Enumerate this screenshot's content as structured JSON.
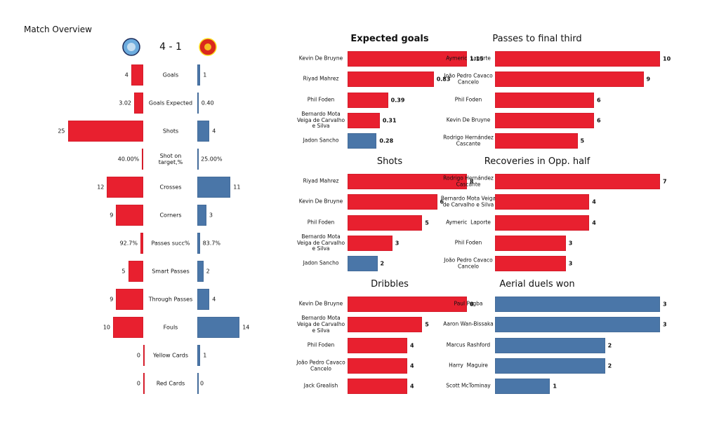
{
  "chart_data": [
    {
      "type": "butterfly",
      "title": "Match Overview",
      "score": "4 - 1",
      "categories": [
        "Goals",
        "Goals Expected",
        "Shots",
        "Shot on\ntarget,%",
        "Crosses",
        "Corners",
        "Passes succ%",
        "Smart Passes",
        "Through Passes",
        "Fouls",
        "Yellow Cards",
        "Red Cards"
      ],
      "series": [
        {
          "color": "#e8202f",
          "values": [
            4,
            3.02,
            25,
            40,
            12,
            9,
            92.7,
            5,
            9,
            10,
            0,
            0
          ],
          "value_labels": [
            "4",
            "3.02",
            "25",
            "40.00%",
            "12",
            "9",
            "92.7%",
            "5",
            "9",
            "10",
            "0",
            "0"
          ]
        },
        {
          "color": "#4a76a8",
          "values": [
            1,
            0.4,
            4,
            25,
            11,
            3,
            83.7,
            2,
            4,
            14,
            1,
            0
          ],
          "value_labels": [
            "1",
            "0.40",
            "4",
            "25.00%",
            "11",
            "3",
            "83.7%",
            "2",
            "4",
            "14",
            "1",
            "0"
          ]
        }
      ]
    },
    {
      "type": "hbar",
      "title": "Expected goals",
      "categories": [
        "Kevin De Bruyne",
        "Riyad Mahrez",
        "Phil Foden",
        "Bernardo Mota\nVeiga de Carvalho\ne Silva",
        "Jadon Sancho"
      ],
      "values": [
        1.15,
        0.83,
        0.39,
        0.31,
        0.28
      ],
      "colors": [
        "#e8202f",
        "#e8202f",
        "#e8202f",
        "#e8202f",
        "#4a76a8"
      ]
    },
    {
      "type": "hbar",
      "title": "Passes to final third",
      "categories": [
        "Aymeric  Laporte",
        "João Pedro Cavaco\nCancelo",
        "Phil Foden",
        "Kevin De Bruyne",
        "Rodrigo Hernández\nCascante"
      ],
      "values": [
        10,
        9,
        6,
        6,
        5
      ],
      "colors": [
        "#e8202f",
        "#e8202f",
        "#e8202f",
        "#e8202f",
        "#e8202f"
      ]
    },
    {
      "type": "hbar",
      "title": "Shots",
      "categories": [
        "Riyad Mahrez",
        "Kevin De Bruyne",
        "Phil Foden",
        "Bernardo Mota\nVeiga de Carvalho\ne Silva",
        "Jadon Sancho"
      ],
      "values": [
        8,
        6,
        5,
        3,
        2
      ],
      "colors": [
        "#e8202f",
        "#e8202f",
        "#e8202f",
        "#e8202f",
        "#4a76a8"
      ]
    },
    {
      "type": "hbar",
      "title": "Recoveries in Opp. half",
      "categories": [
        "Rodrigo Hernández\nCascante",
        "Bernardo Mota Veiga\nde Carvalho e Silva",
        "Aymeric  Laporte",
        "Phil Foden",
        "João Pedro Cavaco\nCancelo"
      ],
      "values": [
        7,
        4,
        4,
        3,
        3
      ],
      "colors": [
        "#e8202f",
        "#e8202f",
        "#e8202f",
        "#e8202f",
        "#e8202f"
      ]
    },
    {
      "type": "hbar",
      "title": "Dribbles",
      "categories": [
        "Kevin De Bruyne",
        "Bernardo Mota\nVeiga de Carvalho\ne Silva",
        "Phil Foden",
        "João Pedro Cavaco\nCancelo",
        "Jack Grealish"
      ],
      "values": [
        8,
        5,
        4,
        4,
        4
      ],
      "colors": [
        "#e8202f",
        "#e8202f",
        "#e8202f",
        "#e8202f",
        "#e8202f"
      ]
    },
    {
      "type": "hbar",
      "title": "Aerial duels won",
      "categories": [
        "Paul Pogba",
        "Aaron Wan-Bissaka",
        "Marcus Rashford",
        "Harry  Maguire",
        "Scott McTominay"
      ],
      "values": [
        3,
        3,
        2,
        2,
        1
      ],
      "colors": [
        "#4a76a8",
        "#4a76a8",
        "#4a76a8",
        "#4a76a8",
        "#4a76a8"
      ]
    }
  ]
}
